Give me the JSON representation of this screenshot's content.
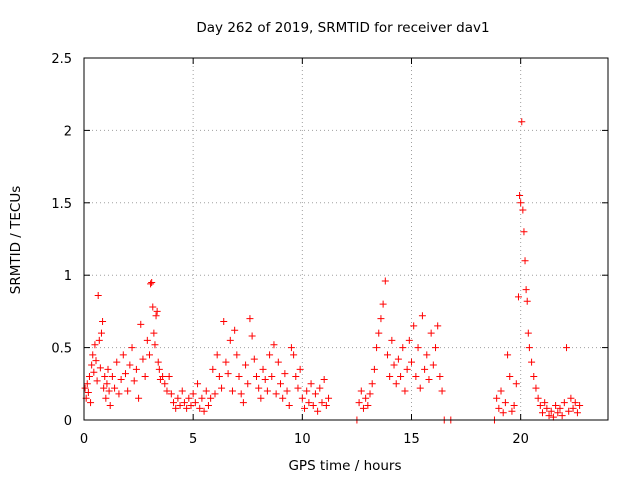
{
  "chart_data": {
    "type": "scatter",
    "title": "Day 262 of 2019, SRMTID for receiver dav1",
    "xlabel": "GPS time / hours",
    "ylabel": "SRMTID / TECUs",
    "xlim": [
      0,
      24
    ],
    "ylim": [
      0,
      2.5
    ],
    "xticks": [
      0,
      5,
      10,
      15,
      20
    ],
    "xtick_labels": [
      "0",
      "5",
      "10",
      "15",
      "20"
    ],
    "yticks": [
      0,
      0.5,
      1,
      1.5,
      2,
      2.5
    ],
    "ytick_labels": [
      "0",
      "0.5",
      "1",
      "1.5",
      "2",
      "2.5"
    ],
    "grid": true,
    "marker": "+",
    "color": "#ff0000",
    "series": [
      {
        "name": "dav1",
        "points": [
          [
            0.05,
            0.22
          ],
          [
            0.1,
            0.15
          ],
          [
            0.15,
            0.25
          ],
          [
            0.2,
            0.19
          ],
          [
            0.25,
            0.3
          ],
          [
            0.3,
            0.12
          ],
          [
            0.35,
            0.38
          ],
          [
            0.4,
            0.45
          ],
          [
            0.45,
            0.33
          ],
          [
            0.5,
            0.52
          ],
          [
            0.55,
            0.41
          ],
          [
            0.6,
            0.27
          ],
          [
            0.65,
            0.86
          ],
          [
            0.7,
            0.55
          ],
          [
            0.75,
            0.36
          ],
          [
            0.8,
            0.6
          ],
          [
            0.85,
            0.68
          ],
          [
            0.9,
            0.22
          ],
          [
            0.95,
            0.3
          ],
          [
            1.0,
            0.15
          ],
          [
            1.05,
            0.25
          ],
          [
            1.1,
            0.35
          ],
          [
            1.15,
            0.2
          ],
          [
            1.2,
            0.1
          ],
          [
            1.3,
            0.3
          ],
          [
            1.4,
            0.22
          ],
          [
            1.5,
            0.4
          ],
          [
            1.6,
            0.18
          ],
          [
            1.7,
            0.28
          ],
          [
            1.8,
            0.45
          ],
          [
            1.9,
            0.32
          ],
          [
            2.0,
            0.2
          ],
          [
            2.1,
            0.38
          ],
          [
            2.2,
            0.5
          ],
          [
            2.3,
            0.27
          ],
          [
            2.4,
            0.35
          ],
          [
            2.5,
            0.15
          ],
          [
            2.6,
            0.66
          ],
          [
            2.7,
            0.42
          ],
          [
            2.8,
            0.3
          ],
          [
            2.9,
            0.55
          ],
          [
            3.0,
            0.45
          ],
          [
            3.05,
            0.94
          ],
          [
            3.1,
            0.95
          ],
          [
            3.15,
            0.78
          ],
          [
            3.2,
            0.6
          ],
          [
            3.25,
            0.52
          ],
          [
            3.3,
            0.72
          ],
          [
            3.35,
            0.75
          ],
          [
            3.4,
            0.4
          ],
          [
            3.45,
            0.35
          ],
          [
            3.5,
            0.28
          ],
          [
            3.6,
            0.3
          ],
          [
            3.7,
            0.25
          ],
          [
            3.8,
            0.2
          ],
          [
            3.9,
            0.3
          ],
          [
            4.0,
            0.18
          ],
          [
            4.1,
            0.12
          ],
          [
            4.2,
            0.08
          ],
          [
            4.3,
            0.15
          ],
          [
            4.4,
            0.1
          ],
          [
            4.5,
            0.2
          ],
          [
            4.6,
            0.12
          ],
          [
            4.7,
            0.08
          ],
          [
            4.8,
            0.15
          ],
          [
            4.9,
            0.1
          ],
          [
            5.0,
            0.18
          ],
          [
            5.1,
            0.12
          ],
          [
            5.2,
            0.25
          ],
          [
            5.3,
            0.08
          ],
          [
            5.4,
            0.15
          ],
          [
            5.5,
            0.06
          ],
          [
            5.6,
            0.2
          ],
          [
            5.7,
            0.1
          ],
          [
            5.8,
            0.15
          ],
          [
            5.9,
            0.35
          ],
          [
            6.0,
            0.18
          ],
          [
            6.1,
            0.45
          ],
          [
            6.2,
            0.3
          ],
          [
            6.3,
            0.22
          ],
          [
            6.4,
            0.68
          ],
          [
            6.5,
            0.4
          ],
          [
            6.6,
            0.32
          ],
          [
            6.7,
            0.55
          ],
          [
            6.8,
            0.2
          ],
          [
            6.9,
            0.62
          ],
          [
            7.0,
            0.45
          ],
          [
            7.1,
            0.3
          ],
          [
            7.2,
            0.18
          ],
          [
            7.3,
            0.12
          ],
          [
            7.4,
            0.38
          ],
          [
            7.5,
            0.25
          ],
          [
            7.6,
            0.7
          ],
          [
            7.7,
            0.58
          ],
          [
            7.8,
            0.42
          ],
          [
            7.9,
            0.3
          ],
          [
            8.0,
            0.22
          ],
          [
            8.1,
            0.15
          ],
          [
            8.2,
            0.35
          ],
          [
            8.3,
            0.28
          ],
          [
            8.4,
            0.2
          ],
          [
            8.5,
            0.45
          ],
          [
            8.6,
            0.3
          ],
          [
            8.7,
            0.52
          ],
          [
            8.8,
            0.18
          ],
          [
            8.9,
            0.4
          ],
          [
            9.0,
            0.25
          ],
          [
            9.1,
            0.15
          ],
          [
            9.2,
            0.32
          ],
          [
            9.3,
            0.2
          ],
          [
            9.4,
            0.1
          ],
          [
            9.5,
            0.5
          ],
          [
            9.6,
            0.45
          ],
          [
            9.7,
            0.3
          ],
          [
            9.8,
            0.22
          ],
          [
            9.9,
            0.35
          ],
          [
            10.0,
            0.15
          ],
          [
            10.1,
            0.08
          ],
          [
            10.2,
            0.2
          ],
          [
            10.3,
            0.12
          ],
          [
            10.4,
            0.25
          ],
          [
            10.5,
            0.1
          ],
          [
            10.6,
            0.18
          ],
          [
            10.7,
            0.06
          ],
          [
            10.8,
            0.22
          ],
          [
            10.9,
            0.12
          ],
          [
            11.0,
            0.28
          ],
          [
            11.1,
            0.1
          ],
          [
            11.2,
            0.15
          ],
          [
            12.5,
            0.0
          ],
          [
            12.6,
            0.12
          ],
          [
            12.7,
            0.2
          ],
          [
            12.8,
            0.08
          ],
          [
            12.9,
            0.15
          ],
          [
            13.0,
            0.1
          ],
          [
            13.1,
            0.18
          ],
          [
            13.2,
            0.25
          ],
          [
            13.3,
            0.35
          ],
          [
            13.4,
            0.5
          ],
          [
            13.5,
            0.6
          ],
          [
            13.6,
            0.7
          ],
          [
            13.7,
            0.8
          ],
          [
            13.8,
            0.96
          ],
          [
            13.9,
            0.45
          ],
          [
            14.0,
            0.3
          ],
          [
            14.1,
            0.55
          ],
          [
            14.2,
            0.38
          ],
          [
            14.3,
            0.25
          ],
          [
            14.4,
            0.42
          ],
          [
            14.5,
            0.3
          ],
          [
            14.6,
            0.5
          ],
          [
            14.7,
            0.2
          ],
          [
            14.8,
            0.35
          ],
          [
            14.9,
            0.55
          ],
          [
            15.0,
            0.4
          ],
          [
            15.1,
            0.65
          ],
          [
            15.2,
            0.3
          ],
          [
            15.3,
            0.5
          ],
          [
            15.4,
            0.22
          ],
          [
            15.5,
            0.72
          ],
          [
            15.6,
            0.35
          ],
          [
            15.7,
            0.45
          ],
          [
            15.8,
            0.28
          ],
          [
            15.9,
            0.6
          ],
          [
            16.0,
            0.38
          ],
          [
            16.1,
            0.5
          ],
          [
            16.2,
            0.65
          ],
          [
            16.3,
            0.3
          ],
          [
            16.4,
            0.2
          ],
          [
            16.5,
            0.0
          ],
          [
            16.8,
            0.0
          ],
          [
            18.8,
            0.0
          ],
          [
            18.9,
            0.15
          ],
          [
            19.0,
            0.08
          ],
          [
            19.1,
            0.2
          ],
          [
            19.2,
            0.05
          ],
          [
            19.3,
            0.12
          ],
          [
            19.4,
            0.45
          ],
          [
            19.5,
            0.3
          ],
          [
            19.6,
            0.06
          ],
          [
            19.7,
            0.1
          ],
          [
            19.8,
            0.25
          ],
          [
            19.9,
            0.85
          ],
          [
            19.95,
            1.55
          ],
          [
            20.0,
            1.5
          ],
          [
            20.05,
            2.06
          ],
          [
            20.1,
            1.45
          ],
          [
            20.15,
            1.3
          ],
          [
            20.2,
            1.1
          ],
          [
            20.25,
            0.9
          ],
          [
            20.3,
            0.82
          ],
          [
            20.35,
            0.6
          ],
          [
            20.4,
            0.5
          ],
          [
            20.5,
            0.4
          ],
          [
            20.6,
            0.3
          ],
          [
            20.7,
            0.22
          ],
          [
            20.8,
            0.15
          ],
          [
            20.9,
            0.1
          ],
          [
            21.0,
            0.05
          ],
          [
            21.1,
            0.12
          ],
          [
            21.2,
            0.08
          ],
          [
            21.3,
            0.03
          ],
          [
            21.4,
            0.06
          ],
          [
            21.5,
            0.02
          ],
          [
            21.6,
            0.1
          ],
          [
            21.7,
            0.05
          ],
          [
            21.8,
            0.08
          ],
          [
            21.9,
            0.03
          ],
          [
            22.0,
            0.12
          ],
          [
            22.1,
            0.5
          ],
          [
            22.2,
            0.06
          ],
          [
            22.3,
            0.15
          ],
          [
            22.4,
            0.08
          ],
          [
            22.5,
            0.12
          ],
          [
            22.6,
            0.05
          ],
          [
            22.7,
            0.1
          ]
        ]
      }
    ]
  }
}
